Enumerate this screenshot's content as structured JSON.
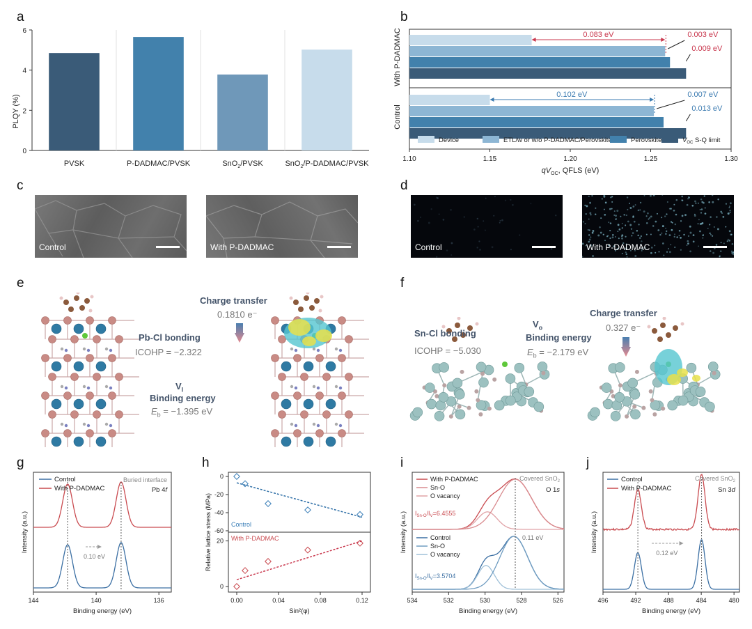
{
  "panel_letters": {
    "a": "a",
    "b": "b",
    "c": "c",
    "d": "d",
    "e": "e",
    "f": "f",
    "g": "g",
    "h": "h",
    "i": "i",
    "j": "j"
  },
  "colors": {
    "navy": "#3a5b78",
    "blue": "#4281ac",
    "mid": "#6f98b9",
    "light": "#c7dceb",
    "red": "#c94a4f",
    "teal": "#7fc0c7"
  },
  "chart_data": [
    {
      "panel": "a",
      "type": "bar",
      "categories": [
        "PVSK",
        "P-DADMAC/PVSK",
        "SnO2/PVSK",
        "SnO2/P-DADMAC/PVSK"
      ],
      "values": [
        4.85,
        5.65,
        3.78,
        5.02
      ],
      "ylabel": "PLQY (%)",
      "ylim": [
        0,
        6
      ],
      "yticks": [
        "0",
        "2",
        "4",
        "6"
      ],
      "xtick_labels": [
        "PVSK",
        "P-DADMAC/PVSK",
        "SnO₂/PVSK",
        "SnO₂/P-DADMAC/PVSK"
      ]
    },
    {
      "panel": "b",
      "type": "bar",
      "orientation": "horizontal",
      "xlabel": "qV",
      "xlabel_sub": "OC",
      "xlabel_rest": ", QFLS (eV)",
      "xlim": [
        1.1,
        1.3
      ],
      "xticks": [
        "1.10",
        "1.15",
        "1.20",
        "1.25",
        "1.30"
      ],
      "groups": [
        "With P-DADMAC",
        "Control"
      ],
      "series": [
        {
          "name": "Device",
          "values": [
            1.176,
            1.15
          ]
        },
        {
          "name": "ETL/w or w/o P-DADMAC/Perovskite",
          "values": [
            1.259,
            1.252
          ]
        },
        {
          "name": "Perovskite",
          "values": [
            1.262,
            1.258
          ]
        },
        {
          "name": "S-Q limit",
          "values": [
            1.272,
            1.272
          ]
        }
      ],
      "legend_voc": "V",
      "legend_voc_sub": "OC",
      "annotations": {
        "with": [
          "0.083 eV",
          "0.003 eV",
          "0.009 eV"
        ],
        "control": [
          "0.102 eV",
          "0.007 eV",
          "0.013 eV"
        ]
      }
    },
    {
      "panel": "g",
      "type": "line",
      "xlabel": "Binding energy (eV)",
      "ylabel": "Intensity (a.u.)",
      "xticks": [
        "144",
        "140",
        "136"
      ],
      "legend": [
        "Control",
        "With P-DADMAC"
      ],
      "note": "Buried interface",
      "note2": "Pb 4",
      "note2_i": "f",
      "shift": "0.10 eV",
      "peaks_control": [
        140.9,
        136.05
      ],
      "peaks_with": [
        140.8,
        135.95
      ]
    },
    {
      "panel": "h",
      "type": "scatter",
      "xlabel": "Sin²(φ)",
      "ylabel": "Relative lattice stress (MPa)",
      "xticks": [
        "0.00",
        "0.04",
        "0.08",
        "0.12"
      ],
      "control": {
        "name": "Control",
        "x": [
          0.0,
          0.008,
          0.03,
          0.068,
          0.118
        ],
        "y": [
          0,
          -8,
          -30,
          -37,
          -42
        ],
        "yticks": [
          "0",
          "-20",
          "-40",
          "-60"
        ]
      },
      "with": {
        "name": "With P-DADMAC",
        "x": [
          0.0,
          0.008,
          0.03,
          0.068,
          0.118
        ],
        "y": [
          0,
          7,
          11,
          16,
          19
        ],
        "yticks": [
          "0",
          "20"
        ]
      }
    },
    {
      "panel": "i",
      "type": "line",
      "xlabel": "Binding energy (eV)",
      "ylabel": "Intensity (a.u.)",
      "xticks": [
        "534",
        "532",
        "530",
        "528",
        "526"
      ],
      "legend_top": [
        "With P-DADMAC",
        "Sn-O",
        "O vacancy"
      ],
      "legend_bottom": [
        "Control",
        "Sn-O",
        "O vacancy"
      ],
      "note": "Covered SnO",
      "note_sub": "2",
      "note2": "O 1",
      "note2_i": "s",
      "ratio_top": "6.4555",
      "ratio_bottom": "3.5704",
      "shift": "0.11 eV"
    },
    {
      "panel": "j",
      "type": "line",
      "xlabel": "Binding energy (eV)",
      "ylabel": "Intensity (a.u.)",
      "xticks": [
        "496",
        "492",
        "488",
        "484",
        "480"
      ],
      "legend": [
        "Control",
        "With P-DADMAC"
      ],
      "note": "Covered SnO",
      "note_sub": "2",
      "note2": "Sn 3",
      "note2_i": "d",
      "shift": "0.12 eV",
      "peaks": [
        491.4,
        483.0
      ]
    }
  ],
  "micrographs": {
    "c": [
      "Control",
      "With P-DADMAC"
    ],
    "d": [
      "Control",
      "With P-DADMAC"
    ]
  },
  "panel_e": {
    "charge": "Charge transfer",
    "charge_val": "0.1810 e⁻",
    "bond": "Pb-Cl bonding",
    "icohp": "ICOHP = −2.322",
    "vac": "V",
    "vac_sub": "I",
    "be": "Binding energy",
    "eb": "E",
    "eb_sub": "b",
    "eb_val": " = −1.395 eV"
  },
  "panel_f": {
    "charge": "Charge transfer",
    "charge_val": "0.327 e⁻",
    "bond": "Sn-Cl bonding",
    "icohp": "ICOHP = −5.030",
    "vac": "V",
    "vac_sub": "o",
    "be": "Binding energy",
    "eb": "E",
    "eb_sub": "b",
    "eb_val": " = −2.179 eV"
  }
}
